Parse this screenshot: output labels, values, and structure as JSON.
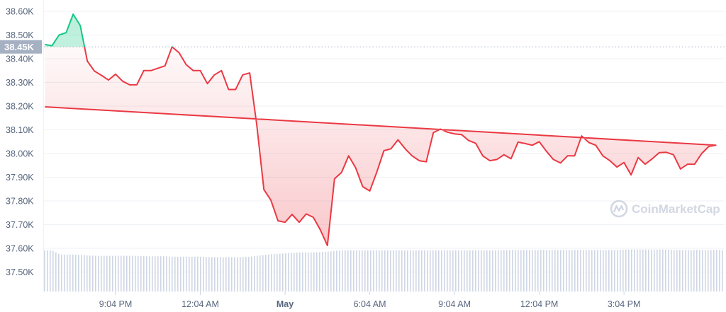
{
  "chart_data": {
    "type": "area",
    "title": "",
    "xlabel": "",
    "ylabel": "",
    "ylim": [
      37.42,
      38.65
    ],
    "y_unit": "K",
    "y_ticks": [
      "38.60K",
      "38.50K",
      "38.40K",
      "38.30K",
      "38.20K",
      "38.10K",
      "38.00K",
      "37.90K",
      "37.80K",
      "37.70K",
      "37.60K",
      "37.50K"
    ],
    "y_tick_values": [
      38.6,
      38.5,
      38.4,
      38.3,
      38.2,
      38.1,
      38.0,
      37.9,
      37.8,
      37.7,
      37.6,
      37.5
    ],
    "x_ticks": [
      "9:04 PM",
      "12:04 AM",
      "May",
      "6:04 AM",
      "9:04 AM",
      "12:04 PM",
      "3:04 PM"
    ],
    "x_tick_times": [
      "21:04",
      "00:04",
      "03:04",
      "06:04",
      "09:04",
      "12:04",
      "15:04"
    ],
    "bold_x_tick": "May",
    "grid": true,
    "baseline": {
      "value": 38.45,
      "label": "38.45K"
    },
    "colors": {
      "above": "#16c784",
      "below": "#ea3943",
      "volume": "#cfd6e4",
      "grid": "#eff2f5",
      "badge": "#a6b0c3",
      "watermark": "#d2d7e2"
    },
    "watermark": "CoinMarketCap",
    "x": [
      "18:34",
      "18:49",
      "19:04",
      "19:19",
      "19:34",
      "19:49",
      "20:04",
      "20:19",
      "20:34",
      "20:49",
      "21:04",
      "21:19",
      "21:34",
      "21:49",
      "22:04",
      "22:19",
      "22:34",
      "22:49",
      "23:04",
      "23:19",
      "23:34",
      "23:49",
      "00:04",
      "00:19",
      "00:34",
      "00:49",
      "01:04",
      "01:19",
      "01:34",
      "01:49",
      "02:04",
      "02:19",
      "02:34",
      "02:49",
      "03:04",
      "03:19",
      "03:34",
      "03:49",
      "04:04",
      "04:19",
      "04:34",
      "04:49",
      "05:04",
      "05:19",
      "05:34",
      "05:49",
      "06:04",
      "06:19",
      "06:34",
      "06:49",
      "07:04",
      "07:19",
      "07:34",
      "07:49",
      "08:04",
      "08:19",
      "08:34",
      "08:49",
      "09:04",
      "09:19",
      "09:34",
      "09:49",
      "10:04",
      "10:19",
      "10:34",
      "10:49",
      "11:04",
      "11:19",
      "11:34",
      "11:49",
      "12:04",
      "12:19",
      "12:34",
      "12:49",
      "13:04",
      "13:19",
      "13:34",
      "13:49",
      "14:04",
      "14:19",
      "14:34",
      "14:49",
      "15:04",
      "15:19",
      "15:34",
      "15:49",
      "16:04",
      "16:19",
      "16:34",
      "16:49",
      "17:04",
      "17:19",
      "17:34",
      "17:49",
      "18:04",
      "18:19",
      "18:34"
    ],
    "price": [
      38.46,
      38.455,
      38.5,
      38.51,
      38.588,
      38.54,
      38.39,
      38.348,
      38.33,
      38.31,
      38.335,
      38.305,
      38.29,
      38.29,
      38.35,
      38.35,
      38.36,
      38.37,
      38.45,
      38.425,
      38.375,
      38.35,
      38.35,
      38.295,
      38.332,
      38.35,
      38.27,
      38.27,
      38.332,
      38.34,
      38.12,
      37.848,
      37.803,
      37.716,
      37.71,
      37.743,
      37.71,
      37.745,
      37.731,
      37.678,
      37.612,
      37.893,
      37.92,
      37.99,
      37.94,
      37.86,
      37.842,
      37.922,
      38.012,
      38.02,
      38.058,
      38.02,
      37.99,
      37.97,
      37.965,
      38.088,
      38.103,
      38.09,
      38.083,
      38.08,
      38.055,
      38.043,
      37.99,
      37.97,
      37.975,
      37.995,
      37.978,
      38.048,
      38.042,
      38.035,
      38.05,
      38.01,
      37.975,
      37.96,
      37.99,
      37.99,
      38.074,
      38.047,
      38.035,
      37.99,
      37.97,
      37.943,
      37.962,
      37.91,
      37.983,
      37.955,
      37.978,
      38.004,
      38.005,
      37.995,
      37.935,
      37.955,
      37.955,
      38.0,
      38.03,
      38.035,
      38.197
    ],
    "volume_relative": [
      0.97,
      0.97,
      0.87,
      0.87,
      0.87,
      0.86,
      0.85,
      0.84,
      0.84,
      0.84,
      0.84,
      0.84,
      0.84,
      0.84,
      0.83,
      0.83,
      0.83,
      0.83,
      0.82,
      0.82,
      0.82,
      0.82,
      0.82,
      0.81,
      0.81,
      0.81,
      0.81,
      0.81,
      0.81,
      0.82,
      0.84,
      0.86,
      0.88,
      0.89,
      0.9,
      0.91,
      0.92,
      0.92,
      0.92,
      0.93,
      0.94,
      0.96,
      0.97,
      0.97,
      0.97,
      0.97,
      0.97,
      0.97,
      0.97,
      0.97,
      0.97,
      0.97,
      0.97,
      0.97,
      0.97,
      0.97,
      0.97,
      0.97,
      0.97,
      0.97,
      0.97,
      0.97,
      0.97,
      0.97,
      0.97,
      0.98,
      0.98,
      0.98,
      0.98,
      0.98,
      0.98,
      0.98,
      0.98,
      0.98,
      0.98,
      0.98,
      0.98,
      0.98,
      0.98,
      0.98,
      0.98,
      0.98,
      0.99,
      0.99,
      0.99,
      0.99,
      0.99,
      0.99,
      0.99,
      0.98,
      0.98,
      0.98,
      0.98,
      0.98,
      0.98,
      0.98,
      0.98
    ]
  }
}
